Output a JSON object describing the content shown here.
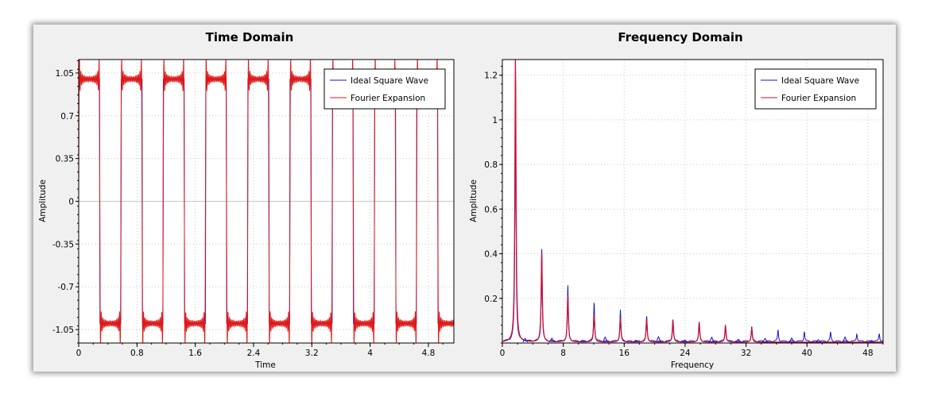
{
  "chart_data": [
    {
      "type": "line",
      "title": "Time Domain",
      "xlabel": "Time",
      "ylabel": "Amplitude",
      "xlim": [
        0,
        5.15
      ],
      "ylim": [
        -1.16,
        1.16
      ],
      "xticks": [
        "0",
        "0.8",
        "1.6",
        "2.4",
        "3.2",
        "4",
        "4.8"
      ],
      "yticks": [
        "1.05",
        "0.7",
        "0.35",
        "0",
        "-0.35",
        "-0.7",
        "-1.05"
      ],
      "grid": true,
      "legend_position": "top-right",
      "period": 0.58,
      "series": [
        {
          "name": "Ideal Square Wave",
          "color": "#1515c8",
          "description": "square wave, amplitude 1, period 0.58"
        },
        {
          "name": "Fourier Expansion",
          "color": "#e01818",
          "description": "truncated Fourier series with Gibbs ringing, peaks near 1.16"
        }
      ]
    },
    {
      "type": "line",
      "title": "Frequency Domain",
      "xlabel": "Frequency",
      "ylabel": "Amplitude",
      "xlim": [
        0,
        50
      ],
      "ylim": [
        0,
        1.27
      ],
      "xticks": [
        "0",
        "8",
        "16",
        "24",
        "32",
        "40",
        "48"
      ],
      "yticks": [
        "1.2",
        "1",
        "0.8",
        "0.6",
        "0.4",
        "0.2"
      ],
      "grid": true,
      "legend_position": "top-right",
      "series": [
        {
          "name": "Ideal Square Wave",
          "color": "#1515c8",
          "peaks": [
            [
              1.72,
              1.27
            ],
            [
              5.17,
              0.42
            ],
            [
              8.6,
              0.25
            ],
            [
              12.05,
              0.18
            ],
            [
              15.5,
              0.14
            ],
            [
              18.95,
              0.115
            ],
            [
              22.4,
              0.1
            ],
            [
              25.85,
              0.085
            ],
            [
              29.3,
              0.075
            ],
            [
              32.75,
              0.065
            ],
            [
              36.2,
              0.05
            ],
            [
              39.65,
              0.045
            ],
            [
              43.1,
              0.04
            ],
            [
              46.55,
              0.035
            ],
            [
              49.5,
              0.035
            ]
          ]
        },
        {
          "name": "Fourier Expansion",
          "color": "#c8103a",
          "peaks": [
            [
              1.72,
              1.27
            ],
            [
              5.17,
              0.4
            ],
            [
              8.6,
              0.21
            ],
            [
              12.05,
              0.125
            ],
            [
              15.5,
              0.11
            ],
            [
              18.95,
              0.105
            ],
            [
              22.4,
              0.1
            ],
            [
              25.85,
              0.09
            ],
            [
              29.3,
              0.075
            ],
            [
              32.75,
              0.06
            ]
          ]
        }
      ]
    }
  ]
}
